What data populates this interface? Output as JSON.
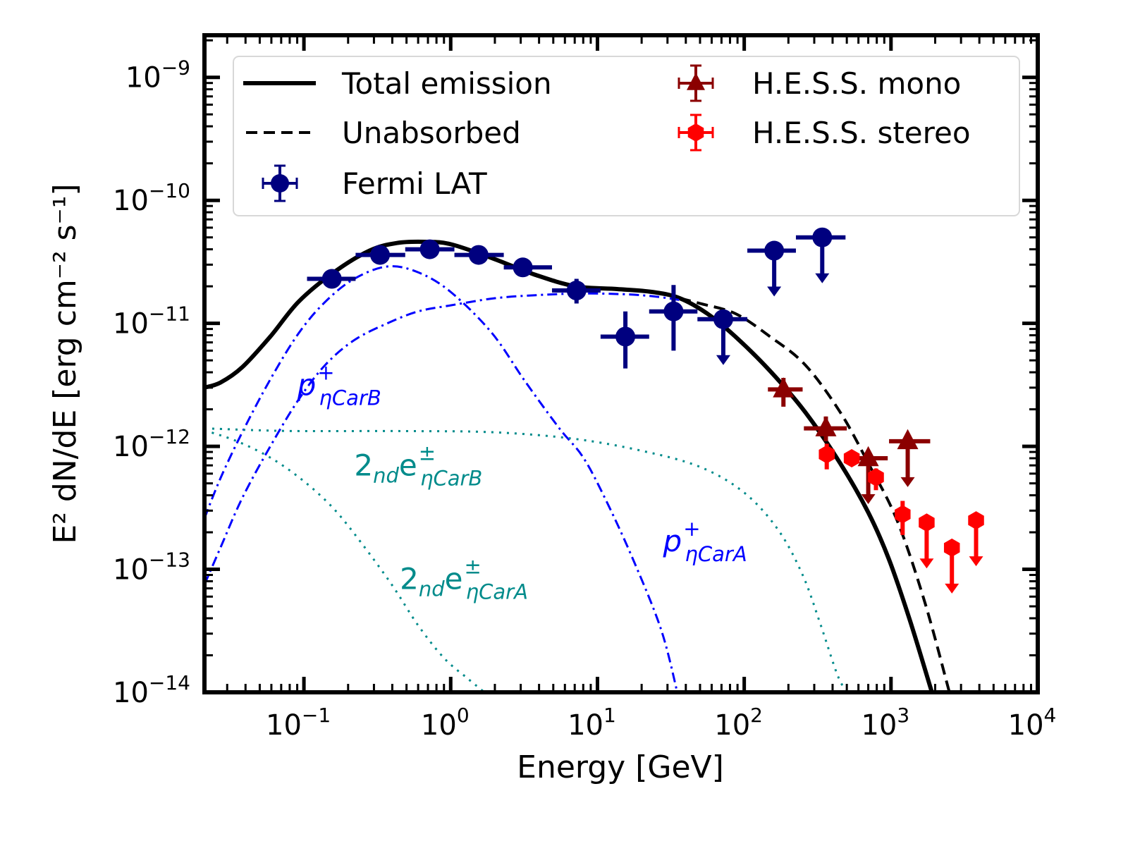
{
  "chart_data": {
    "type": "scatter",
    "title": "",
    "xlabel": "Energy [GeV]",
    "ylabel": "E² dN/dE [erg cm⁻² s⁻¹]",
    "xscale": "log",
    "yscale": "log",
    "xlim": [
      0.021,
      10000
    ],
    "ylim": [
      1e-14,
      2.2e-09
    ],
    "grid": false,
    "x_ticks": [
      {
        "value": 0.1,
        "base": "10",
        "exp": "−1"
      },
      {
        "value": 1,
        "base": "10",
        "exp": "0"
      },
      {
        "value": 10,
        "base": "10",
        "exp": "1"
      },
      {
        "value": 100,
        "base": "10",
        "exp": "2"
      },
      {
        "value": 1000,
        "base": "10",
        "exp": "3"
      },
      {
        "value": 10000,
        "base": "10",
        "exp": "4"
      }
    ],
    "y_ticks": [
      {
        "value": 1e-09,
        "base": "10",
        "exp": "−9"
      },
      {
        "value": 1e-10,
        "base": "10",
        "exp": "−10"
      },
      {
        "value": 1e-11,
        "base": "10",
        "exp": "−11"
      },
      {
        "value": 1e-12,
        "base": "10",
        "exp": "−12"
      },
      {
        "value": 1e-13,
        "base": "10",
        "exp": "−13"
      },
      {
        "value": 1e-14,
        "base": "10",
        "exp": "−14"
      }
    ],
    "legend": {
      "placement": "top",
      "entries": [
        {
          "label": "Total emission",
          "kind": "line-solid",
          "color": "#000000"
        },
        {
          "label": "Unabsorbed",
          "kind": "line-dashed",
          "color": "#000000"
        },
        {
          "label": "Fermi LAT",
          "kind": "marker-circle",
          "color": "#00007f"
        },
        {
          "label": "H.E.S.S. mono",
          "kind": "marker-triangle",
          "color": "#8b0000"
        },
        {
          "label": "H.E.S.S. stereo",
          "kind": "marker-hexagon",
          "color": "#ff0000"
        }
      ]
    },
    "curves": [
      {
        "name": "Total emission",
        "color": "#000000",
        "style": "solid",
        "points": [
          [
            0.021,
            3e-12
          ],
          [
            0.027,
            3.3e-12
          ],
          [
            0.038,
            4.4e-12
          ],
          [
            0.059,
            7.8e-12
          ],
          [
            0.092,
            1.5e-11
          ],
          [
            0.16,
            2.6e-11
          ],
          [
            0.28,
            3.9e-11
          ],
          [
            0.43,
            4.5e-11
          ],
          [
            0.67,
            4.6e-11
          ],
          [
            1.0,
            4.4e-11
          ],
          [
            1.9,
            3.4e-11
          ],
          [
            3.7,
            2.5e-11
          ],
          [
            7.1,
            2e-11
          ],
          [
            13.6,
            1.9e-11
          ],
          [
            23.6,
            1.8e-11
          ],
          [
            36.4,
            1.6e-11
          ],
          [
            56,
            1.2e-11
          ],
          [
            87,
            7.8e-12
          ],
          [
            150,
            4.1e-12
          ],
          [
            260,
            1.9e-12
          ],
          [
            450,
            7.3e-13
          ],
          [
            700,
            2.9e-13
          ],
          [
            970,
            1.2e-13
          ],
          [
            1350,
            3.8e-14
          ],
          [
            1900,
            1e-14
          ]
        ]
      },
      {
        "name": "Unabsorbed",
        "color": "#000000",
        "style": "dashed",
        "points": [
          [
            36.4,
            1.6e-11
          ],
          [
            50,
            1.45e-11
          ],
          [
            87,
            1.2e-11
          ],
          [
            150,
            7.8e-12
          ],
          [
            260,
            4.6e-12
          ],
          [
            450,
            1.9e-12
          ],
          [
            700,
            7.3e-13
          ],
          [
            1100,
            2.5e-13
          ],
          [
            1700,
            5.4e-14
          ],
          [
            2500,
            1e-14
          ]
        ]
      },
      {
        "name": "p+ ηCarB",
        "color": "#0000ff",
        "style": "dashdot",
        "points": [
          [
            0.021,
            2.6e-13
          ],
          [
            0.027,
            5.5e-13
          ],
          [
            0.038,
            1.3e-12
          ],
          [
            0.059,
            3.5e-12
          ],
          [
            0.092,
            8.3e-12
          ],
          [
            0.14,
            1.5e-11
          ],
          [
            0.22,
            2.3e-11
          ],
          [
            0.37,
            2.9e-11
          ],
          [
            0.6,
            2.6e-11
          ],
          [
            1.0,
            1.8e-11
          ],
          [
            1.9,
            8.4e-12
          ],
          [
            3.2,
            3.4e-12
          ],
          [
            5.5,
            1.4e-12
          ],
          [
            7.9,
            8.3e-13
          ],
          [
            11,
            4e-13
          ],
          [
            17,
            1.3e-13
          ],
          [
            27,
            3.3e-14
          ],
          [
            35,
            1e-14
          ]
        ]
      },
      {
        "name": "p+ ηCarA",
        "color": "#0000ff",
        "style": "dashdot",
        "points": [
          [
            0.021,
            7.5e-14
          ],
          [
            0.027,
            1.5e-13
          ],
          [
            0.038,
            3.8e-13
          ],
          [
            0.059,
            1e-12
          ],
          [
            0.092,
            2.4e-12
          ],
          [
            0.14,
            4.6e-12
          ],
          [
            0.22,
            7.3e-12
          ],
          [
            0.37,
            1e-11
          ],
          [
            0.6,
            1.25e-11
          ],
          [
            1.0,
            1.4e-11
          ],
          [
            2.0,
            1.6e-11
          ],
          [
            4.0,
            1.7e-11
          ],
          [
            8.0,
            1.75e-11
          ],
          [
            16,
            1.72e-11
          ],
          [
            25,
            1.65e-11
          ],
          [
            36,
            1.55e-11
          ]
        ]
      },
      {
        "name": "2nd e± ηCarB",
        "color": "#008b8b",
        "style": "dotted",
        "points": [
          [
            0.021,
            1.4e-12
          ],
          [
            0.05,
            1.35e-12
          ],
          [
            0.1,
            1.33e-12
          ],
          [
            0.5,
            1.33e-12
          ],
          [
            2,
            1.3e-12
          ],
          [
            7,
            1.15e-12
          ],
          [
            20,
            9.2e-13
          ],
          [
            50,
            6.8e-13
          ],
          [
            100,
            4.2e-13
          ],
          [
            170,
            2.1e-13
          ],
          [
            250,
            9e-14
          ],
          [
            330,
            3.6e-14
          ],
          [
            430,
            1.4e-14
          ],
          [
            500,
            1e-14
          ]
        ]
      },
      {
        "name": "2nd e± ηCarA",
        "color": "#008b8b",
        "style": "dotted",
        "points": [
          [
            0.021,
            1.35e-12
          ],
          [
            0.035,
            1.1e-12
          ],
          [
            0.06,
            8e-13
          ],
          [
            0.1,
            5.2e-13
          ],
          [
            0.16,
            3.1e-13
          ],
          [
            0.25,
            1.6e-13
          ],
          [
            0.4,
            7.4e-14
          ],
          [
            0.6,
            3.5e-14
          ],
          [
            0.9,
            1.9e-14
          ],
          [
            1.3,
            1.3e-14
          ],
          [
            1.7,
            1e-14
          ]
        ]
      }
    ],
    "series": [
      {
        "name": "Fermi LAT",
        "marker": "circle",
        "color": "#00007f",
        "points": [
          {
            "x": 0.155,
            "y": 2.3e-11,
            "xerr": [
              0.105,
              0.225
            ],
            "yerr": [
              1.95e-11,
              2.65e-11
            ],
            "ul": false
          },
          {
            "x": 0.33,
            "y": 3.6e-11,
            "xerr": [
              0.225,
              0.49
            ],
            "yerr": [
              3.35e-11,
              3.85e-11
            ],
            "ul": false
          },
          {
            "x": 0.72,
            "y": 4e-11,
            "xerr": [
              0.49,
              1.06
            ],
            "yerr": [
              3.8e-11,
              4.2e-11
            ],
            "ul": false
          },
          {
            "x": 1.55,
            "y": 3.6e-11,
            "xerr": [
              1.06,
              2.3
            ],
            "yerr": [
              3.4e-11,
              3.8e-11
            ],
            "ul": false
          },
          {
            "x": 3.1,
            "y": 2.85e-11,
            "xerr": [
              2.3,
              4.9
            ],
            "yerr": [
              2.65e-11,
              3.05e-11
            ],
            "ul": false
          },
          {
            "x": 7.2,
            "y": 1.85e-11,
            "xerr": [
              4.9,
              10.5
            ],
            "yerr": [
              1.45e-11,
              2.3e-11
            ],
            "ul": false
          },
          {
            "x": 15.5,
            "y": 7.8e-12,
            "xerr": [
              10.5,
              22.5
            ],
            "yerr": [
              4.3e-12,
              1.25e-11
            ],
            "ul": false
          },
          {
            "x": 33,
            "y": 1.25e-11,
            "xerr": [
              22.5,
              48
            ],
            "yerr": [
              6e-12,
              2.05e-11
            ],
            "ul": false
          },
          {
            "x": 72,
            "y": 1.08e-11,
            "xerr": [
              48,
              105
            ],
            "yerr": [],
            "ul": true
          },
          {
            "x": 160,
            "y": 3.9e-11,
            "xerr": [
              105,
              225
            ],
            "yerr": [],
            "ul": true
          },
          {
            "x": 340,
            "y": 5e-11,
            "xerr": [
              225,
              490
            ],
            "yerr": [],
            "ul": true
          }
        ]
      },
      {
        "name": "H.E.S.S. mono",
        "marker": "triangle",
        "color": "#8b0000",
        "points": [
          {
            "x": 185,
            "y": 2.9e-12,
            "xerr": [
              145,
              250
            ],
            "yerr": [
              2.1e-12,
              3.6e-12
            ],
            "ul": false
          },
          {
            "x": 360,
            "y": 1.4e-12,
            "xerr": [
              255,
              500
            ],
            "yerr": [
              1.1e-12,
              1.75e-12
            ],
            "ul": false
          },
          {
            "x": 700,
            "y": 8e-13,
            "xerr": [
              520,
              950
            ],
            "yerr": [],
            "ul": true
          },
          {
            "x": 1300,
            "y": 1.1e-12,
            "xerr": [
              970,
              1850
            ],
            "yerr": [],
            "ul": true
          }
        ]
      },
      {
        "name": "H.E.S.S. stereo",
        "marker": "hexagon",
        "color": "#ff0000",
        "points": [
          {
            "x": 365,
            "y": 8.6e-13,
            "xerr": [
              330,
              400
            ],
            "yerr": [
              6.5e-13,
              1.05e-12
            ],
            "ul": false
          },
          {
            "x": 540,
            "y": 8e-13,
            "xerr": [
              490,
              600
            ],
            "yerr": [
              7e-13,
              9e-13
            ],
            "ul": false
          },
          {
            "x": 790,
            "y": 5.6e-13,
            "xerr": [
              720,
              870
            ],
            "yerr": [
              4.4e-13,
              6.6e-13
            ],
            "ul": false
          },
          {
            "x": 1200,
            "y": 2.8e-13,
            "xerr": [
              1090,
              1320
            ],
            "yerr": [
              1.9e-13,
              3.6e-13
            ],
            "ul": false
          },
          {
            "x": 1750,
            "y": 2.4e-13,
            "xerr": [
              1590,
              1930
            ],
            "yerr": [],
            "ul": true
          },
          {
            "x": 2600,
            "y": 1.5e-13,
            "xerr": [
              2360,
              2870
            ],
            "yerr": [],
            "ul": true
          },
          {
            "x": 3800,
            "y": 2.5e-13,
            "xerr": [
              3450,
              4200
            ],
            "yerr": [],
            "ul": true
          }
        ]
      }
    ],
    "annotations": [
      {
        "id": "pCarB",
        "base": "p",
        "sup": "+",
        "sub": "ηCarB",
        "prefix": "",
        "prefix_sub": "",
        "color": "#0000ff",
        "x": 0.09,
        "y": 2.6e-12
      },
      {
        "id": "eCarB",
        "base": "e",
        "sup": "±",
        "sub": "ηCarB",
        "prefix": "2",
        "prefix_sub": "nd",
        "color": "#008b8b",
        "x": 0.22,
        "y": 5.8e-13
      },
      {
        "id": "pCarA",
        "base": "p",
        "sup": "+",
        "sub": "ηCarA",
        "prefix": "",
        "prefix_sub": "",
        "color": "#0000ff",
        "x": 28,
        "y": 1.4e-13
      },
      {
        "id": "eCarA",
        "base": "e",
        "sup": "±",
        "sub": "ηCarA",
        "prefix": "2",
        "prefix_sub": "nd",
        "color": "#008b8b",
        "x": 0.45,
        "y": 6.9e-14
      }
    ]
  }
}
